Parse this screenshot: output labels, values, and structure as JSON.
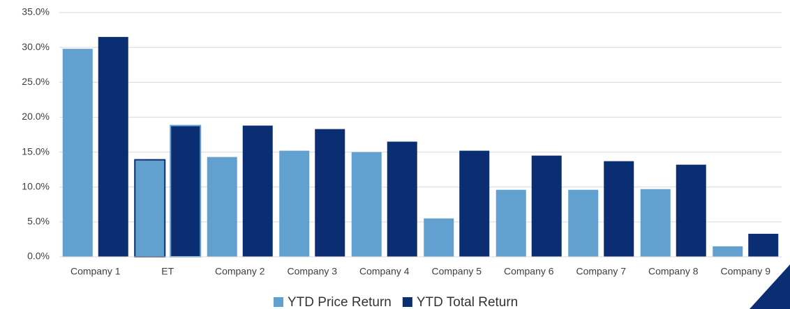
{
  "chart_data": {
    "type": "bar",
    "categories": [
      "Company 1",
      "ET",
      "Company 2",
      "Company 3",
      "Company 4",
      "Company 5",
      "Company 6",
      "Company 7",
      "Company 8",
      "Company 9"
    ],
    "series": [
      {
        "name": "YTD Price Return",
        "color": "#62a0d0",
        "values": [
          29.8,
          13.9,
          14.3,
          15.2,
          15.0,
          5.5,
          9.6,
          9.6,
          9.7,
          1.5
        ]
      },
      {
        "name": "YTD Total Return",
        "color": "#0b2d72",
        "values": [
          31.5,
          18.8,
          18.8,
          18.3,
          16.5,
          15.2,
          14.5,
          13.7,
          13.2,
          3.3
        ]
      }
    ],
    "highlight": "ET",
    "ylim": [
      0,
      35
    ],
    "yticks": [
      {
        "value": 0,
        "label": "0.0%"
      },
      {
        "value": 5,
        "label": "5.0%"
      },
      {
        "value": 10,
        "label": "10.0%"
      },
      {
        "value": 15,
        "label": "15.0%"
      },
      {
        "value": 20,
        "label": "20.0%"
      },
      {
        "value": 25,
        "label": "25.0%"
      },
      {
        "value": 30,
        "label": "30.0%"
      },
      {
        "value": 35,
        "label": "35.0%"
      }
    ],
    "grid": true,
    "legend": "bottom"
  }
}
